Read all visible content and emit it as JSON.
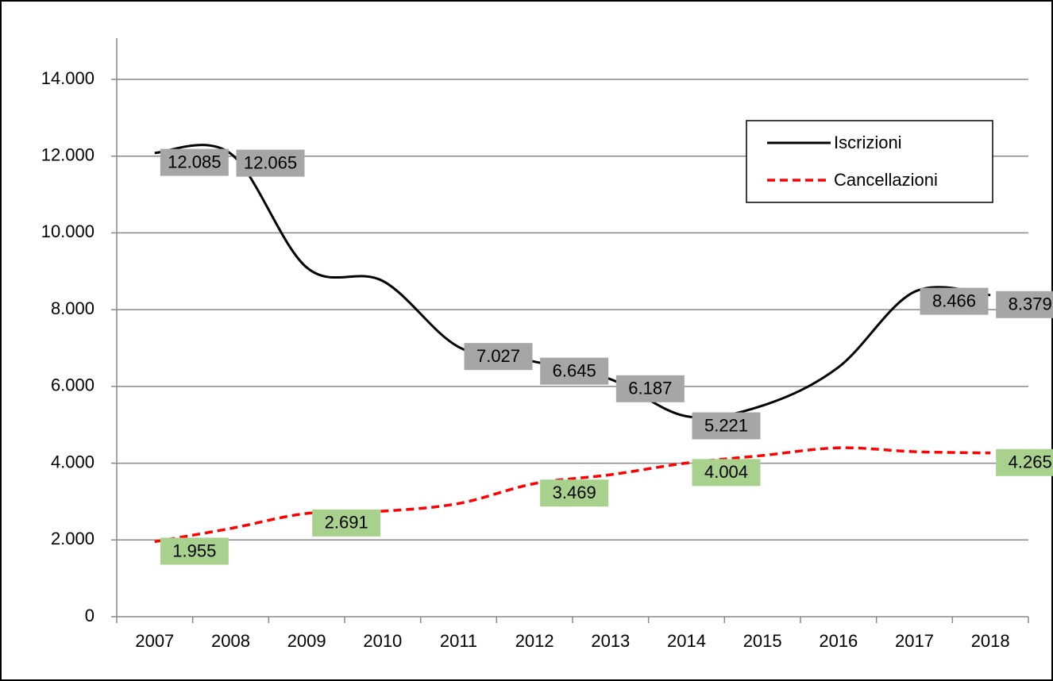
{
  "chart_data": {
    "type": "line",
    "categories": [
      "2007",
      "2008",
      "2009",
      "2010",
      "2011",
      "2012",
      "2013",
      "2014",
      "2015",
      "2016",
      "2017",
      "2018"
    ],
    "series": [
      {
        "name": "Iscrizioni",
        "color": "#000000",
        "dash": false,
        "label_color": "#a6a6a6",
        "values": [
          12085,
          12065,
          9100,
          8750,
          7027,
          6645,
          6187,
          5221,
          5500,
          6500,
          8466,
          8379
        ],
        "value_labels": [
          "12.085",
          "12.065",
          null,
          null,
          "7.027",
          "6.645",
          "6.187",
          "5.221",
          null,
          null,
          "8.466",
          "8.379"
        ]
      },
      {
        "name": "Cancellazioni",
        "color": "#ff0000",
        "dash": true,
        "label_color": "#a9d18e",
        "values": [
          1955,
          2300,
          2691,
          2750,
          2950,
          3469,
          3700,
          4004,
          4200,
          4400,
          4300,
          4265
        ],
        "value_labels": [
          "1.955",
          null,
          "2.691",
          null,
          null,
          "3.469",
          null,
          "4.004",
          null,
          null,
          null,
          "4.265"
        ]
      }
    ],
    "ylim": [
      0,
      14000
    ],
    "yticks": [
      0,
      {
        "value": 2000,
        "label": "2.000"
      },
      {
        "value": 4000,
        "label": "4.000"
      },
      {
        "value": 6000,
        "label": "6.000"
      },
      {
        "value": 8000,
        "label": "8.000"
      },
      {
        "value": 10000,
        "label": "10.000"
      },
      {
        "value": 12000,
        "label": "12.000"
      },
      {
        "value": 14000,
        "label": "14.000"
      }
    ],
    "grid": true,
    "smooth": true,
    "legend": "upper right"
  }
}
